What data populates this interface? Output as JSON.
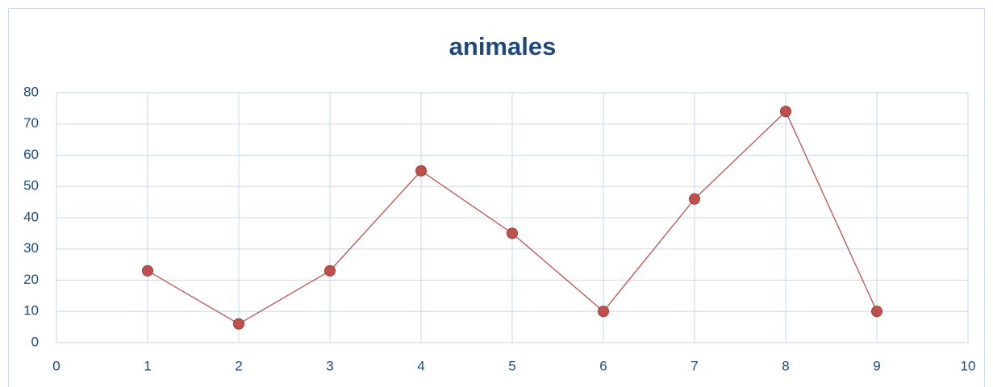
{
  "chart_data": {
    "type": "scatter-line",
    "title": "animales",
    "x": [
      1,
      2,
      3,
      4,
      5,
      6,
      7,
      8,
      9
    ],
    "series": [
      {
        "color": "#c0504d",
        "values": [
          23,
          6,
          23,
          55,
          35,
          10,
          46,
          74,
          10
        ]
      }
    ],
    "xlim": [
      0,
      10
    ],
    "xticks": [
      0,
      1,
      2,
      3,
      4,
      5,
      6,
      7,
      8,
      9,
      10
    ],
    "ylim": [
      0,
      80
    ],
    "yticks": [
      0,
      10,
      20,
      30,
      40,
      50,
      60,
      70,
      80
    ],
    "grid": true
  }
}
